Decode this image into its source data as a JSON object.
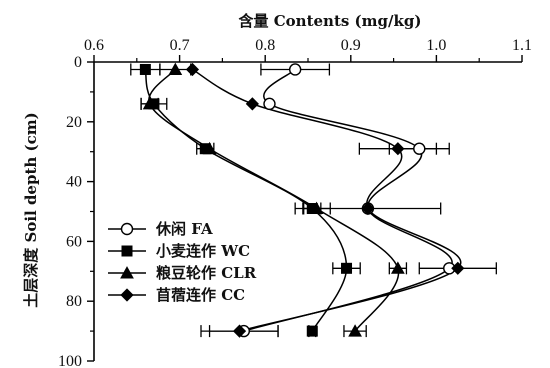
{
  "chart_data": {
    "type": "line",
    "orientation": "vertical-profile",
    "x_axis": {
      "label": "含量 Contents (mg/kg)",
      "position": "top",
      "range": [
        0.6,
        1.1
      ],
      "ticks": [
        0.6,
        0.7,
        0.8,
        0.9,
        1.0,
        1.1
      ],
      "tick_labels": [
        "0.6",
        "0.7",
        "0.8",
        "0.9",
        "1.0",
        "1.1"
      ]
    },
    "y_axis": {
      "label": "土层深度 Soil depth (cm)",
      "range": [
        0,
        100
      ],
      "inverted": true,
      "ticks": [
        0,
        20,
        40,
        60,
        80,
        100
      ],
      "tick_labels": [
        "0",
        "20",
        "40",
        "60",
        "80",
        "100"
      ]
    },
    "grid": false,
    "legend_position": "left-middle",
    "series": [
      {
        "name": "休闲 FA",
        "marker": "circle-open",
        "depths": [
          2.5,
          14,
          29,
          49,
          69,
          90
        ],
        "values": [
          0.835,
          0.805,
          0.98,
          0.92,
          1.015,
          0.775
        ],
        "error_bars": [
          0.04,
          0,
          0.035,
          0,
          0,
          0.04
        ]
      },
      {
        "name": "小麦连作 WC",
        "marker": "square-filled",
        "depths": [
          2.5,
          14,
          29,
          49,
          69,
          90
        ],
        "values": [
          0.66,
          0.67,
          0.73,
          0.855,
          0.895,
          0.855
        ],
        "error_bars": [
          0.017,
          0.015,
          0.01,
          0.01,
          0.016,
          0.004
        ]
      },
      {
        "name": "粮豆轮作 CLR",
        "marker": "triangle-filled",
        "depths": [
          2.5,
          14,
          29,
          49,
          69,
          90
        ],
        "values": [
          0.695,
          0.665,
          0.735,
          0.86,
          0.955,
          0.905
        ],
        "error_bars": [
          0.018,
          0.01,
          0,
          0.016,
          0.01,
          0.013
        ]
      },
      {
        "name": "苜蓿连作 CC",
        "marker": "diamond-filled",
        "depths": [
          2.5,
          14,
          29,
          49,
          69,
          90
        ],
        "values": [
          0.715,
          0.785,
          0.955,
          0.92,
          1.025,
          0.77
        ],
        "error_bars": [
          0,
          0,
          0.045,
          0.085,
          0.045,
          0.045
        ]
      }
    ]
  }
}
